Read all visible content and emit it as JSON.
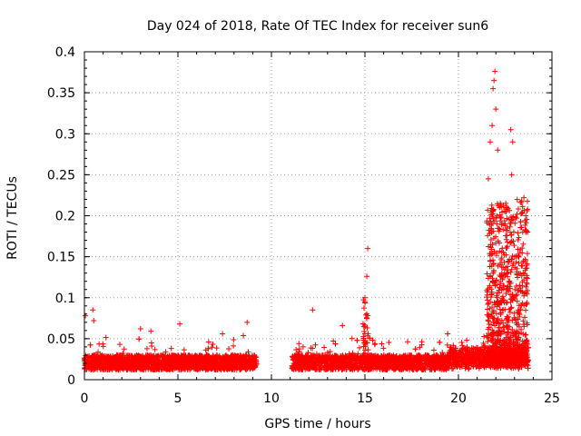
{
  "chart_data": {
    "type": "scatter",
    "title": "Day 024 of 2018, Rate Of TEC Index for receiver sun6",
    "xlabel": "GPS time / hours",
    "ylabel": "ROTI / TECUs",
    "xlim": [
      0,
      25
    ],
    "ylim": [
      0,
      0.4
    ],
    "xticks": [
      "0",
      "5",
      "10",
      "15",
      "20",
      "25"
    ],
    "yticks": [
      "0",
      "0.05",
      "0.1",
      "0.15",
      "0.2",
      "0.25",
      "0.3",
      "0.35",
      "0.4"
    ],
    "grid": true,
    "marker": "+",
    "color": "#ff0000",
    "data_gaps_hours": [
      [
        9.2,
        11.1
      ]
    ],
    "notable_points": [
      {
        "x": 0.05,
        "y": 0.078
      },
      {
        "x": 0.45,
        "y": 0.085
      },
      {
        "x": 0.5,
        "y": 0.072
      },
      {
        "x": 3.0,
        "y": 0.062
      },
      {
        "x": 5.1,
        "y": 0.068
      },
      {
        "x": 8.7,
        "y": 0.07
      },
      {
        "x": 12.2,
        "y": 0.085
      },
      {
        "x": 13.8,
        "y": 0.066
      },
      {
        "x": 15.0,
        "y": 0.1
      },
      {
        "x": 15.1,
        "y": 0.126
      },
      {
        "x": 15.15,
        "y": 0.16
      },
      {
        "x": 21.6,
        "y": 0.245
      },
      {
        "x": 21.7,
        "y": 0.29
      },
      {
        "x": 21.8,
        "y": 0.31
      },
      {
        "x": 21.85,
        "y": 0.355
      },
      {
        "x": 21.9,
        "y": 0.365
      },
      {
        "x": 21.95,
        "y": 0.376
      },
      {
        "x": 22.0,
        "y": 0.33
      },
      {
        "x": 22.1,
        "y": 0.28
      },
      {
        "x": 22.2,
        "y": 0.21
      },
      {
        "x": 22.8,
        "y": 0.305
      },
      {
        "x": 22.9,
        "y": 0.29
      },
      {
        "x": 22.85,
        "y": 0.25
      },
      {
        "x": 23.5,
        "y": 0.222
      },
      {
        "x": 23.6,
        "y": 0.2
      },
      {
        "x": 23.7,
        "y": 0.18
      }
    ]
  }
}
